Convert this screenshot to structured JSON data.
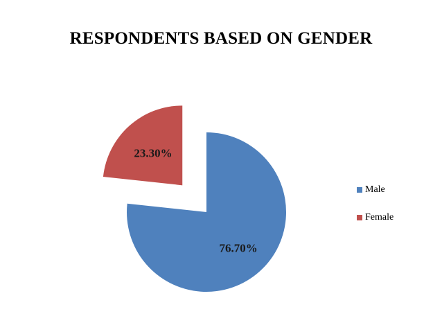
{
  "chart_data": {
    "type": "pie",
    "title": "RESPONDENTS BASED ON GENDER",
    "categories": [
      "Male",
      "Female"
    ],
    "values": [
      76.7,
      23.3
    ],
    "data_labels": [
      "76.70%",
      "23.30%"
    ],
    "colors": [
      "#4F81BD",
      "#C0504D"
    ],
    "exploded": [
      false,
      true
    ],
    "legend": "right",
    "legend_entries": [
      "Male",
      "Female"
    ]
  }
}
